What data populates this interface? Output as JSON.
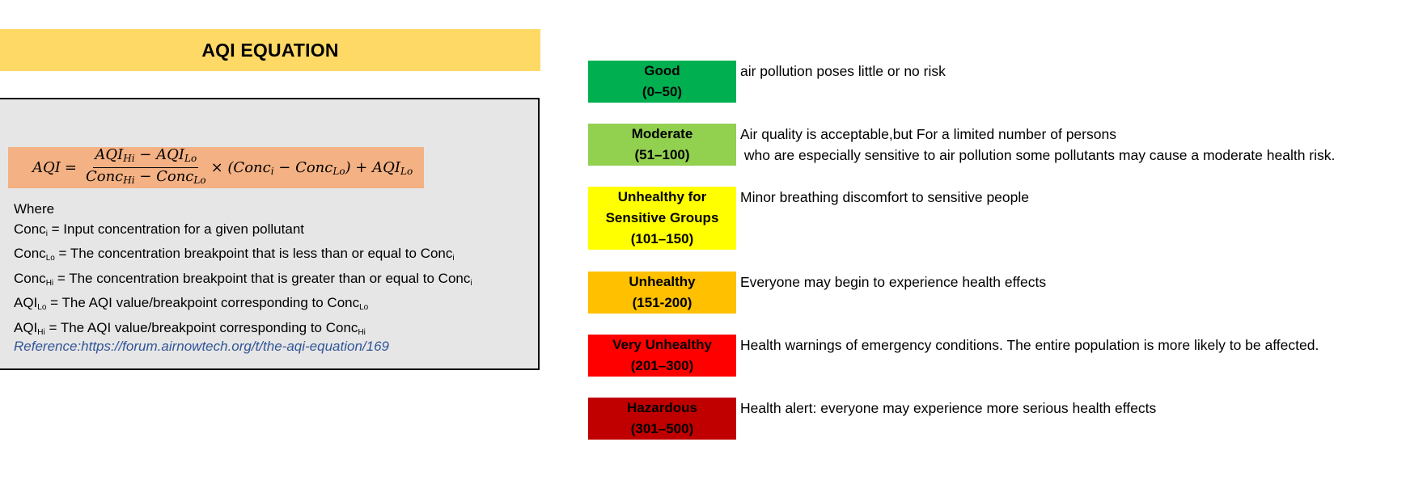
{
  "title": "AQI  EQUATION",
  "formula": {
    "lhs": "AQI",
    "eq": "=",
    "frac_num": [
      "AQI",
      "Hi",
      " − AQI",
      "Lo"
    ],
    "frac_den": [
      "Conc",
      "Hi",
      " − Conc",
      "Lo"
    ],
    "times": "× (Conc",
    "i_sub": "i",
    "minus_conc": " − Conc",
    "lo_sub": "Lo",
    "close_plus": ") + AQI",
    "lo_sub2": "Lo"
  },
  "definitions": {
    "where": "Where",
    "lines": [
      {
        "a": "Conc",
        "a_sub": "i",
        "text": " = Input concentration for a given pollutant",
        "b": "",
        "b_sub": ""
      },
      {
        "a": "Conc",
        "a_sub": "Lo",
        "text": " = The concentration breakpoint that is less than or equal to ",
        "b": "Conc",
        "b_sub": "i"
      },
      {
        "a": "Conc",
        "a_sub": "Hi",
        "text": " = The concentration breakpoint that is greater than or equal to ",
        "b": "Conc",
        "b_sub": "i"
      },
      {
        "a": "AQI",
        "a_sub": "Lo",
        "text": " = The AQI value/breakpoint corresponding to ",
        "b": "Conc",
        "b_sub": "Lo"
      },
      {
        "a": "AQI",
        "a_sub": "Hi",
        "text": " = The AQI value/breakpoint corresponding to ",
        "b": "Conc",
        "b_sub": "Hi"
      }
    ]
  },
  "reference": "Reference:https://forum.airnowtech.org/t/the-aqi-equation/169",
  "categories": [
    {
      "lines": [
        "Good",
        "(0–50)"
      ],
      "color": "#00B050",
      "text_color": "#000000",
      "desc": [
        "air pollution poses little or no risk"
      ]
    },
    {
      "lines": [
        "Moderate",
        "(51–100)"
      ],
      "color": "#92D050",
      "text_color": "#000000",
      "desc": [
        "Air quality is acceptable,but For a limited number of persons",
        " who are especially sensitive to air pollution some pollutants may cause a moderate health risk."
      ]
    },
    {
      "lines": [
        "Unhealthy for",
        "Sensitive Groups",
        "(101–150)"
      ],
      "color": "#FFFF00",
      "text_color": "#000000",
      "desc": [
        "Minor breathing discomfort to sensitive people"
      ]
    },
    {
      "lines": [
        "Unhealthy",
        "(151-200)"
      ],
      "color": "#FFC000",
      "text_color": "#000000",
      "desc": [
        "Everyone may begin to experience health effects"
      ]
    },
    {
      "lines": [
        "Very Unhealthy",
        "(201–300)"
      ],
      "color": "#FF0000",
      "text_color": "#000000",
      "desc": [
        "Health warnings of emergency conditions. The entire population is more likely to be affected."
      ]
    },
    {
      "lines": [
        "Hazardous",
        "(301–500)"
      ],
      "color": "#C00000",
      "text_color": "#000000",
      "desc": [
        "Health alert: everyone may experience more serious health effects"
      ]
    }
  ]
}
